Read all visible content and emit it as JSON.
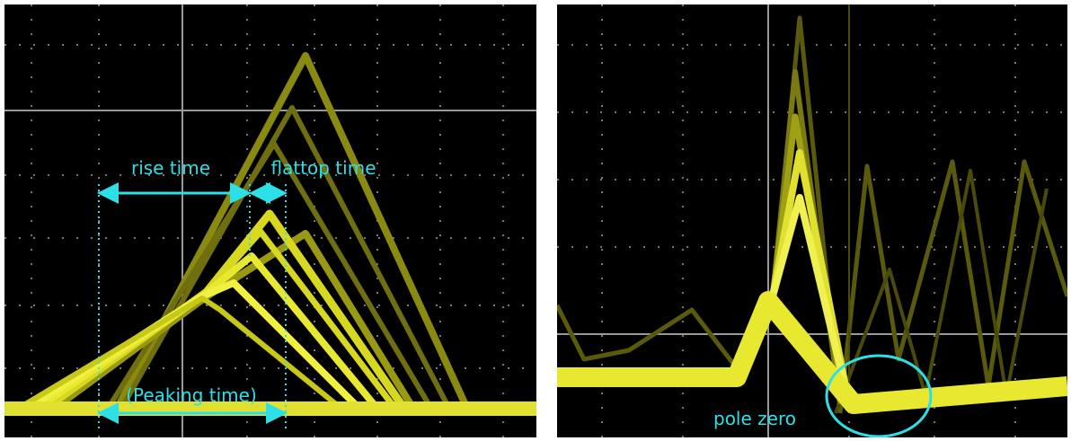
{
  "left": {
    "rise_label": "rise time",
    "flattop_label": "flattop time",
    "peaking_label": "(Peaking time)"
  },
  "right": {
    "pole_zero_label": "pole zero"
  }
}
